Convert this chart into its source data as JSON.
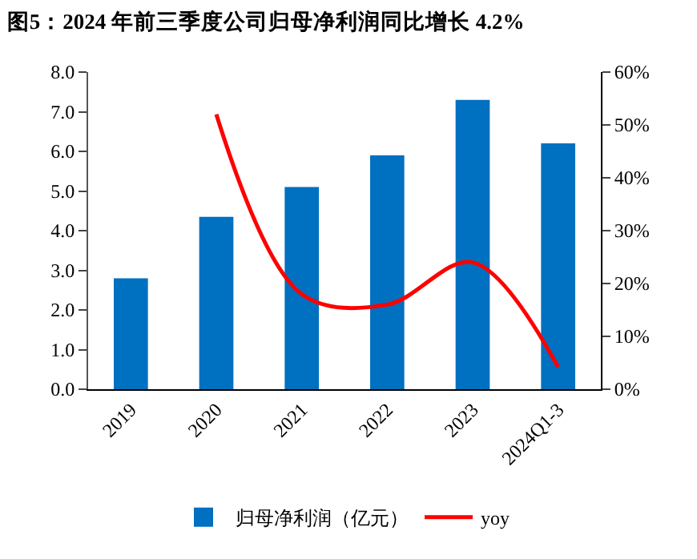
{
  "chart_data": {
    "type": "bar",
    "title": "图5：2024 年前三季度公司归母净利润同比增长 4.2%",
    "categories": [
      "2019",
      "2020",
      "2021",
      "2022",
      "2023",
      "2024Q1-3"
    ],
    "series": [
      {
        "name": "归母净利润（亿元）",
        "color": "#0070c0",
        "values": [
          2.8,
          4.35,
          5.1,
          5.9,
          7.3,
          6.2
        ]
      },
      {
        "name": "yoy",
        "type": "line",
        "axis": "y2",
        "color": "#ff0000",
        "values": [
          null,
          52,
          18,
          16,
          24,
          4.2
        ]
      }
    ],
    "ylim": [
      0,
      8
    ],
    "yticks": [
      {
        "value": 0,
        "label": "0.0"
      },
      {
        "value": 1,
        "label": "1.0"
      },
      {
        "value": 2,
        "label": "2.0"
      },
      {
        "value": 3,
        "label": "3.0"
      },
      {
        "value": 4,
        "label": "4.0"
      },
      {
        "value": 5,
        "label": "5.0"
      },
      {
        "value": 6,
        "label": "6.0"
      },
      {
        "value": 7,
        "label": "7.0"
      },
      {
        "value": 8,
        "label": "8.0"
      }
    ],
    "y2lim": [
      0,
      60
    ],
    "y2ticks": [
      {
        "value": 0,
        "label": "0%"
      },
      {
        "value": 10,
        "label": "10%"
      },
      {
        "value": 20,
        "label": "20%"
      },
      {
        "value": 30,
        "label": "30%"
      },
      {
        "value": 40,
        "label": "40%"
      },
      {
        "value": 50,
        "label": "50%"
      },
      {
        "value": 60,
        "label": "60%"
      }
    ],
    "legend": "bottom"
  }
}
